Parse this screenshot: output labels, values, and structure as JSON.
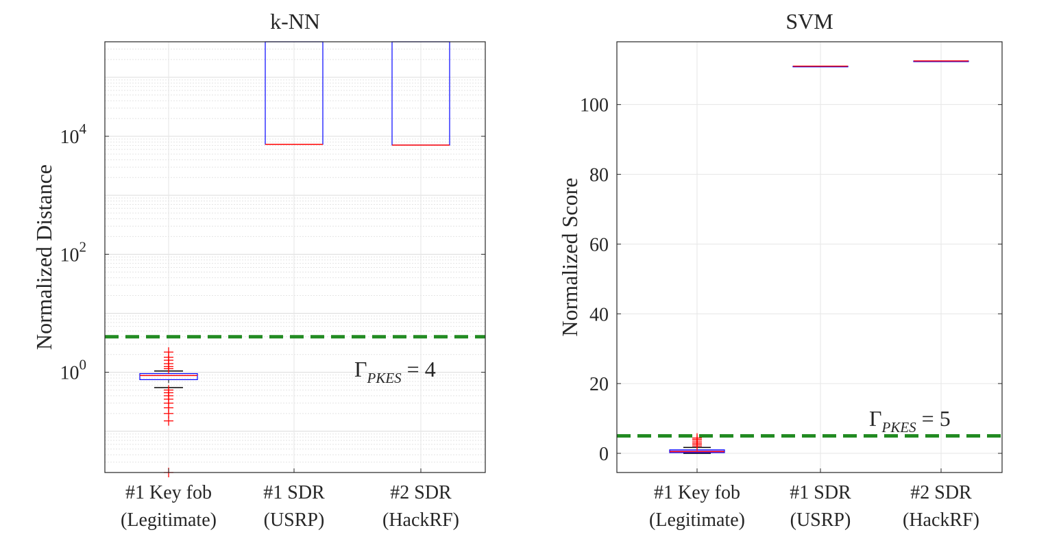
{
  "chart_data": [
    {
      "type": "box",
      "title": "k-NN",
      "ylabel": "Normalized Distance",
      "yscale": "log",
      "ylim": [
        0.02,
        400000
      ],
      "yticks": [
        1,
        100,
        10000
      ],
      "ytick_labels": [
        {
          "base": "10",
          "exp": "0"
        },
        {
          "base": "10",
          "exp": "2"
        },
        {
          "base": "10",
          "exp": "4"
        }
      ],
      "categories": [
        {
          "line1": "#1 Key fob",
          "line2": "(Legitimate)"
        },
        {
          "line1": "#1 SDR",
          "line2": "(USRP)"
        },
        {
          "line1": "#2 SDR",
          "line2": "(HackRF)"
        }
      ],
      "boxes": [
        {
          "q1": 0.75,
          "median": 0.88,
          "q3": 0.95,
          "whisker_low": 0.55,
          "whisker_high": 1.05,
          "outliers": [
            0.016,
            0.15,
            0.2,
            0.25,
            0.3,
            0.35,
            0.4,
            0.45,
            0.5,
            1.15,
            1.25,
            1.4,
            1.6,
            1.8,
            2.2
          ]
        },
        {
          "q1": 7300,
          "median": 7300,
          "q3": 400000,
          "whisker_low": 7300,
          "whisker_high": 400000,
          "outliers": []
        },
        {
          "q1": 7100,
          "median": 7100,
          "q3": 400000,
          "whisker_low": 7100,
          "whisker_high": 400000,
          "outliers": []
        }
      ],
      "threshold": {
        "value": 4,
        "label_main": "Γ",
        "label_sub": "PKES",
        "label_rest": " = 4"
      },
      "grid": true
    },
    {
      "type": "box",
      "title": "SVM",
      "ylabel": "Normalized Score",
      "yscale": "linear",
      "ylim": [
        -5.5,
        118
      ],
      "yticks": [
        0,
        20,
        40,
        60,
        80,
        100
      ],
      "ytick_labels": [
        "0",
        "20",
        "40",
        "60",
        "80",
        "100"
      ],
      "categories": [
        {
          "line1": "#1 Key fob",
          "line2": "(Legitimate)"
        },
        {
          "line1": "#1 SDR",
          "line2": "(USRP)"
        },
        {
          "line1": "#2 SDR",
          "line2": "(HackRF)"
        }
      ],
      "boxes": [
        {
          "q1": 0.2,
          "median": 0.5,
          "q3": 1.0,
          "whisker_low": 0,
          "whisker_high": 1.7,
          "outliers": [
            2.1,
            2.6,
            3.0,
            3.5,
            4.0,
            4.4
          ]
        },
        {
          "q1": 111.0,
          "median": 111.0,
          "q3": 111.0,
          "whisker_low": 111.0,
          "whisker_high": 111.0,
          "outliers": []
        },
        {
          "q1": 112.5,
          "median": 112.5,
          "q3": 112.5,
          "whisker_low": 112.5,
          "whisker_high": 112.5,
          "outliers": []
        }
      ],
      "threshold": {
        "value": 5,
        "label_main": "Γ",
        "label_sub": "PKES",
        "label_rest": " = 5"
      },
      "grid": true
    }
  ],
  "colors": {
    "box": "#0000ff",
    "median": "#ff0000",
    "whisker": "#000000",
    "outlier": "#ff0000",
    "threshold": "#228b22",
    "grid": "#e6e6e6",
    "axis": "#262626",
    "legit_fill": "#b98cf0"
  }
}
